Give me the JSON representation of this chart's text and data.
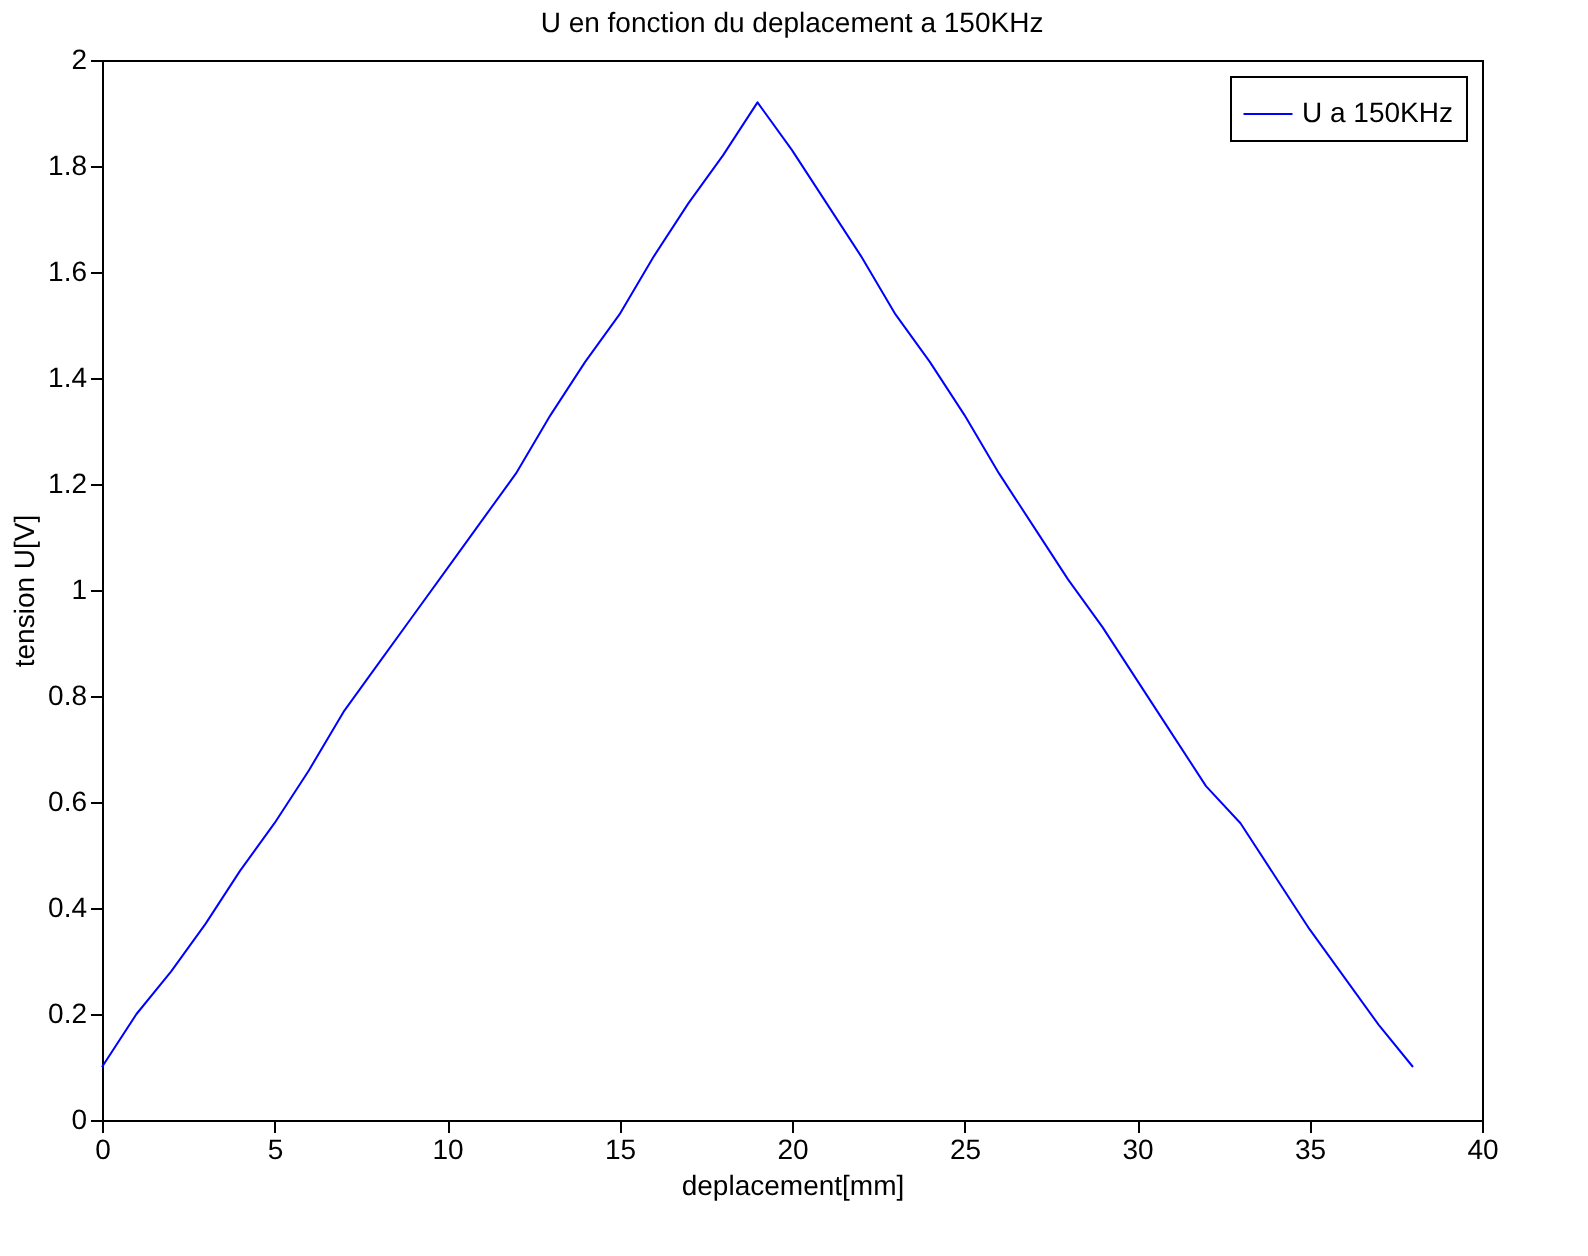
{
  "chart_data": {
    "type": "line",
    "title": "U en fonction du deplacement a 150KHz",
    "xlabel": "deplacement[mm]",
    "ylabel": "tension U[V]",
    "x": [
      0,
      1,
      2,
      3,
      4,
      5,
      6,
      7,
      8,
      9,
      10,
      11,
      12,
      13,
      14,
      15,
      16,
      17,
      18,
      19,
      20,
      21,
      22,
      23,
      24,
      25,
      26,
      27,
      28,
      29,
      30,
      31,
      32,
      33,
      34,
      35,
      36,
      37,
      38
    ],
    "series": [
      {
        "name": "U a 150KHz",
        "color": "#0000ff",
        "values": [
          0.1,
          0.2,
          0.28,
          0.37,
          0.47,
          0.56,
          0.66,
          0.77,
          0.86,
          0.95,
          1.04,
          1.13,
          1.22,
          1.33,
          1.43,
          1.52,
          1.63,
          1.73,
          1.82,
          1.92,
          1.83,
          1.73,
          1.63,
          1.52,
          1.43,
          1.33,
          1.22,
          1.12,
          1.02,
          0.93,
          0.83,
          0.73,
          0.63,
          0.56,
          0.46,
          0.36,
          0.27,
          0.18,
          0.1
        ]
      }
    ],
    "xlim": [
      0,
      40
    ],
    "xticks": [
      0,
      5,
      10,
      15,
      20,
      25,
      30,
      35,
      40
    ],
    "ylim": [
      0,
      2
    ],
    "yticks": [
      0,
      0.2,
      0.4,
      0.6,
      0.8,
      1,
      1.2,
      1.4,
      1.6,
      1.8,
      2
    ],
    "grid": false,
    "legend": "top right",
    "marker": "none",
    "line_style": "solid"
  }
}
